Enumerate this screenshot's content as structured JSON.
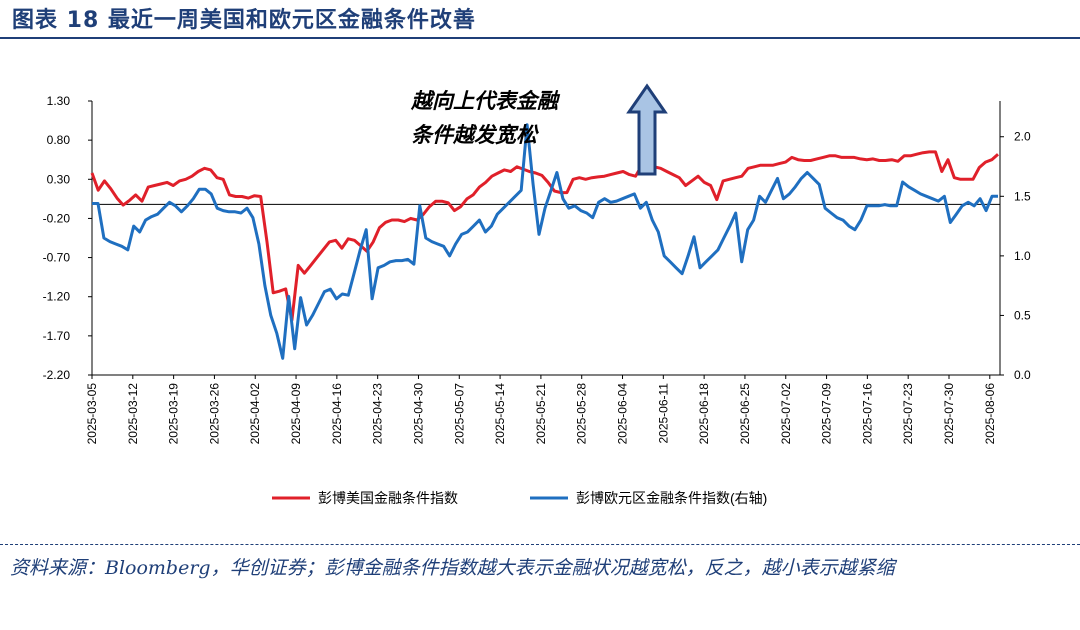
{
  "figure": {
    "title": "图表 18    最近一周美国和欧元区金融条件改善",
    "source_note": "资料来源：Bloomberg，华创证券；彭博金融条件指数越大表示金融状况越宽松，反之，越小表示越紧缩"
  },
  "colors": {
    "us": "#e0202a",
    "eu": "#1f6fc0",
    "title": "#1f3f78",
    "arrow_fill": "#a9c4e4",
    "arrow_stroke": "#1f3f78"
  },
  "chart_data": {
    "type": "line",
    "annotation": [
      "越向上代表金融",
      "条件越发宽松"
    ],
    "x_ticks": [
      "2025-03-05",
      "2025-03-12",
      "2025-03-19",
      "2025-03-26",
      "2025-04-02",
      "2025-04-09",
      "2025-04-16",
      "2025-04-23",
      "2025-04-30",
      "2025-05-07",
      "2025-05-14",
      "2025-05-21",
      "2025-05-28",
      "2025-06-04",
      "2025-06-11",
      "2025-06-18",
      "2025-06-25",
      "2025-07-02",
      "2025-07-09",
      "2025-07-16",
      "2025-07-23",
      "2025-07-30",
      "2025-08-06"
    ],
    "y_left": {
      "ticks": [
        "1.30",
        "0.80",
        "0.30",
        "-0.20",
        "-0.70",
        "-1.20",
        "-1.70",
        "-2.20"
      ],
      "range": [
        -2.2,
        1.3
      ]
    },
    "y_right": {
      "ticks": [
        "2.0",
        "1.5",
        "1.0",
        "0.5",
        "0.0"
      ],
      "range": [
        0,
        2.3
      ]
    },
    "baseline": {
      "axis": "left",
      "value": -0.02
    },
    "series": [
      {
        "name": "彭博美国金融条件指数",
        "axis": "left",
        "points": [
          [
            0,
            0.38
          ],
          [
            1,
            0.16
          ],
          [
            2,
            0.28
          ],
          [
            3,
            0.18
          ],
          [
            4,
            0.06
          ],
          [
            5,
            -0.03
          ],
          [
            6,
            0.03
          ],
          [
            7,
            0.1
          ],
          [
            8,
            0.02
          ],
          [
            9,
            0.2
          ],
          [
            10,
            0.22
          ],
          [
            11,
            0.24
          ],
          [
            12,
            0.26
          ],
          [
            13,
            0.22
          ],
          [
            14,
            0.28
          ],
          [
            15,
            0.3
          ],
          [
            16,
            0.34
          ],
          [
            17,
            0.4
          ],
          [
            18,
            0.44
          ],
          [
            19,
            0.42
          ],
          [
            20,
            0.32
          ],
          [
            21,
            0.3
          ],
          [
            22,
            0.1
          ],
          [
            23,
            0.08
          ],
          [
            24,
            0.08
          ],
          [
            25,
            0.06
          ],
          [
            26,
            0.09
          ],
          [
            27,
            0.08
          ],
          [
            28,
            -0.5
          ],
          [
            29,
            -1.15
          ],
          [
            30,
            -1.13
          ],
          [
            31,
            -1.1
          ],
          [
            32,
            -1.5
          ],
          [
            33,
            -0.8
          ],
          [
            34,
            -0.9
          ],
          [
            35,
            -0.8
          ],
          [
            36,
            -0.7
          ],
          [
            37,
            -0.6
          ],
          [
            38,
            -0.5
          ],
          [
            39,
            -0.48
          ],
          [
            40,
            -0.58
          ],
          [
            41,
            -0.46
          ],
          [
            42,
            -0.48
          ],
          [
            43,
            -0.55
          ],
          [
            44,
            -0.62
          ],
          [
            45,
            -0.5
          ],
          [
            46,
            -0.32
          ],
          [
            47,
            -0.25
          ],
          [
            48,
            -0.22
          ],
          [
            49,
            -0.22
          ],
          [
            50,
            -0.24
          ],
          [
            51,
            -0.2
          ],
          [
            52,
            -0.22
          ],
          [
            53,
            -0.15
          ],
          [
            54,
            -0.05
          ],
          [
            55,
            0.02
          ],
          [
            56,
            0.02
          ],
          [
            57,
            0.0
          ],
          [
            58,
            -0.1
          ],
          [
            59,
            -0.05
          ],
          [
            60,
            0.05
          ],
          [
            61,
            0.1
          ],
          [
            62,
            0.2
          ],
          [
            63,
            0.26
          ],
          [
            64,
            0.34
          ],
          [
            65,
            0.38
          ],
          [
            66,
            0.42
          ],
          [
            67,
            0.4
          ],
          [
            68,
            0.46
          ],
          [
            69,
            0.43
          ],
          [
            70,
            0.4
          ],
          [
            71,
            0.38
          ],
          [
            72,
            0.35
          ],
          [
            73,
            0.26
          ],
          [
            74,
            0.15
          ],
          [
            75,
            0.13
          ],
          [
            76,
            0.13
          ],
          [
            77,
            0.3
          ],
          [
            78,
            0.32
          ],
          [
            79,
            0.3
          ],
          [
            80,
            0.32
          ],
          [
            81,
            0.33
          ],
          [
            82,
            0.34
          ],
          [
            83,
            0.36
          ],
          [
            84,
            0.38
          ],
          [
            85,
            0.4
          ],
          [
            86,
            0.36
          ],
          [
            87,
            0.34
          ],
          [
            88,
            0.48
          ],
          [
            89,
            0.5
          ],
          [
            90,
            0.46
          ],
          [
            91,
            0.44
          ],
          [
            92,
            0.4
          ],
          [
            93,
            0.36
          ],
          [
            94,
            0.32
          ],
          [
            95,
            0.22
          ],
          [
            96,
            0.28
          ],
          [
            97,
            0.34
          ],
          [
            98,
            0.26
          ],
          [
            99,
            0.22
          ],
          [
            100,
            0.04
          ],
          [
            101,
            0.28
          ],
          [
            102,
            0.3
          ],
          [
            103,
            0.32
          ],
          [
            104,
            0.34
          ],
          [
            105,
            0.44
          ],
          [
            106,
            0.46
          ],
          [
            107,
            0.48
          ],
          [
            108,
            0.48
          ],
          [
            109,
            0.48
          ],
          [
            110,
            0.5
          ],
          [
            111,
            0.52
          ],
          [
            112,
            0.58
          ],
          [
            113,
            0.55
          ],
          [
            114,
            0.54
          ],
          [
            115,
            0.54
          ],
          [
            116,
            0.56
          ],
          [
            117,
            0.58
          ],
          [
            118,
            0.6
          ],
          [
            119,
            0.6
          ],
          [
            120,
            0.58
          ],
          [
            121,
            0.58
          ],
          [
            122,
            0.58
          ],
          [
            123,
            0.56
          ],
          [
            124,
            0.55
          ],
          [
            125,
            0.56
          ],
          [
            126,
            0.54
          ],
          [
            127,
            0.54
          ],
          [
            128,
            0.55
          ],
          [
            129,
            0.53
          ],
          [
            130,
            0.6
          ],
          [
            131,
            0.6
          ],
          [
            132,
            0.62
          ],
          [
            133,
            0.64
          ],
          [
            134,
            0.65
          ],
          [
            135,
            0.65
          ],
          [
            136,
            0.4
          ],
          [
            137,
            0.55
          ],
          [
            138,
            0.32
          ],
          [
            139,
            0.3
          ],
          [
            140,
            0.3
          ],
          [
            141,
            0.3
          ],
          [
            142,
            0.45
          ],
          [
            143,
            0.52
          ],
          [
            144,
            0.55
          ],
          [
            145,
            0.62
          ]
        ]
      },
      {
        "name": "彭博欧元区金融条件指数(右轴)",
        "axis": "right",
        "points": [
          [
            0,
            1.44
          ],
          [
            1,
            1.44
          ],
          [
            2,
            1.15
          ],
          [
            3,
            1.12
          ],
          [
            4,
            1.1
          ],
          [
            5,
            1.08
          ],
          [
            6,
            1.05
          ],
          [
            7,
            1.25
          ],
          [
            8,
            1.2
          ],
          [
            9,
            1.3
          ],
          [
            10,
            1.33
          ],
          [
            11,
            1.35
          ],
          [
            12,
            1.4
          ],
          [
            13,
            1.45
          ],
          [
            14,
            1.42
          ],
          [
            15,
            1.37
          ],
          [
            16,
            1.42
          ],
          [
            17,
            1.48
          ],
          [
            18,
            1.56
          ],
          [
            19,
            1.56
          ],
          [
            20,
            1.52
          ],
          [
            21,
            1.4
          ],
          [
            22,
            1.38
          ],
          [
            23,
            1.37
          ],
          [
            24,
            1.37
          ],
          [
            25,
            1.36
          ],
          [
            26,
            1.4
          ],
          [
            27,
            1.32
          ],
          [
            28,
            1.1
          ],
          [
            29,
            0.75
          ],
          [
            30,
            0.5
          ],
          [
            31,
            0.35
          ],
          [
            32,
            0.14
          ],
          [
            33,
            0.66
          ],
          [
            34,
            0.22
          ],
          [
            35,
            0.65
          ],
          [
            36,
            0.42
          ],
          [
            37,
            0.5
          ],
          [
            38,
            0.6
          ],
          [
            39,
            0.7
          ],
          [
            40,
            0.72
          ],
          [
            41,
            0.64
          ],
          [
            42,
            0.68
          ],
          [
            43,
            0.67
          ],
          [
            44,
            0.86
          ],
          [
            45,
            1.05
          ],
          [
            46,
            1.22
          ],
          [
            47,
            0.64
          ],
          [
            48,
            0.9
          ],
          [
            49,
            0.92
          ],
          [
            50,
            0.95
          ],
          [
            51,
            0.96
          ],
          [
            52,
            0.96
          ],
          [
            53,
            0.97
          ],
          [
            54,
            0.93
          ],
          [
            55,
            1.42
          ],
          [
            56,
            1.15
          ],
          [
            57,
            1.12
          ],
          [
            58,
            1.1
          ],
          [
            59,
            1.08
          ],
          [
            60,
            1.0
          ],
          [
            61,
            1.1
          ],
          [
            62,
            1.18
          ],
          [
            63,
            1.2
          ],
          [
            64,
            1.25
          ],
          [
            65,
            1.3
          ],
          [
            66,
            1.2
          ],
          [
            67,
            1.25
          ],
          [
            68,
            1.35
          ],
          [
            69,
            1.4
          ],
          [
            70,
            1.45
          ],
          [
            71,
            1.5
          ],
          [
            72,
            1.55
          ],
          [
            73,
            2.1
          ],
          [
            74,
            1.6
          ],
          [
            75,
            1.18
          ],
          [
            76,
            1.4
          ],
          [
            77,
            1.55
          ],
          [
            78,
            1.7
          ],
          [
            79,
            1.48
          ],
          [
            80,
            1.4
          ],
          [
            81,
            1.42
          ],
          [
            82,
            1.38
          ],
          [
            83,
            1.36
          ],
          [
            84,
            1.32
          ],
          [
            85,
            1.45
          ],
          [
            86,
            1.48
          ],
          [
            87,
            1.45
          ],
          [
            88,
            1.46
          ],
          [
            89,
            1.48
          ],
          [
            90,
            1.5
          ],
          [
            91,
            1.52
          ],
          [
            92,
            1.4
          ],
          [
            93,
            1.45
          ],
          [
            94,
            1.3
          ],
          [
            95,
            1.2
          ],
          [
            96,
            1.0
          ],
          [
            97,
            0.95
          ],
          [
            98,
            0.9
          ],
          [
            99,
            0.85
          ],
          [
            100,
            1.0
          ],
          [
            101,
            1.16
          ],
          [
            102,
            0.9
          ],
          [
            103,
            0.95
          ],
          [
            104,
            1.0
          ],
          [
            105,
            1.05
          ],
          [
            106,
            1.15
          ],
          [
            107,
            1.25
          ],
          [
            108,
            1.36
          ],
          [
            109,
            0.95
          ],
          [
            110,
            1.22
          ],
          [
            111,
            1.3
          ],
          [
            112,
            1.5
          ],
          [
            113,
            1.45
          ],
          [
            114,
            1.55
          ],
          [
            115,
            1.65
          ],
          [
            116,
            1.48
          ],
          [
            117,
            1.52
          ],
          [
            118,
            1.58
          ],
          [
            119,
            1.65
          ],
          [
            120,
            1.7
          ],
          [
            121,
            1.65
          ],
          [
            122,
            1.6
          ],
          [
            123,
            1.4
          ],
          [
            124,
            1.36
          ],
          [
            125,
            1.32
          ],
          [
            126,
            1.3
          ],
          [
            127,
            1.25
          ],
          [
            128,
            1.22
          ],
          [
            129,
            1.3
          ],
          [
            130,
            1.42
          ],
          [
            131,
            1.42
          ],
          [
            132,
            1.42
          ],
          [
            133,
            1.43
          ],
          [
            134,
            1.42
          ],
          [
            135,
            1.42
          ],
          [
            136,
            1.62
          ],
          [
            137,
            1.58
          ],
          [
            138,
            1.55
          ],
          [
            139,
            1.52
          ],
          [
            140,
            1.5
          ],
          [
            141,
            1.48
          ],
          [
            142,
            1.46
          ],
          [
            143,
            1.5
          ],
          [
            144,
            1.28
          ],
          [
            145,
            1.35
          ],
          [
            146,
            1.42
          ],
          [
            147,
            1.45
          ],
          [
            148,
            1.42
          ],
          [
            149,
            1.48
          ],
          [
            150,
            1.38
          ],
          [
            151,
            1.5
          ],
          [
            152,
            1.5
          ]
        ]
      }
    ]
  }
}
